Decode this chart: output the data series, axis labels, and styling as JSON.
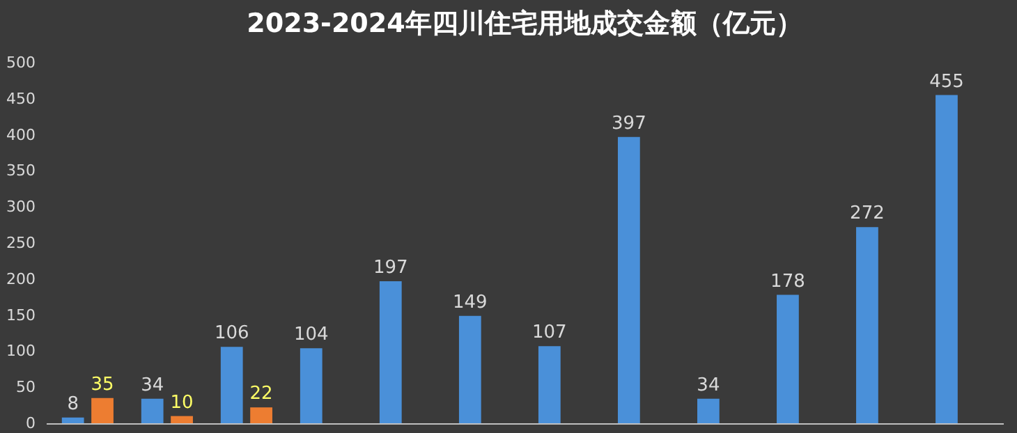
{
  "chart_data": {
    "type": "bar",
    "title": "2023-2024年四川住宅用地成交金额（亿元）",
    "categories": [
      null,
      null,
      null,
      null,
      null,
      null,
      null,
      null,
      null,
      null,
      null,
      null
    ],
    "series": [
      {
        "color": "#4a90d9",
        "values": [
          8,
          34,
          106,
          104,
          197,
          149,
          107,
          397,
          34,
          178,
          272,
          455
        ]
      },
      {
        "color": "#ed7d31",
        "values": [
          35,
          10,
          22,
          null,
          null,
          null,
          null,
          null,
          null,
          null,
          null,
          null
        ]
      }
    ],
    "ylim": [
      0,
      500
    ],
    "yticks": [
      0,
      50,
      100,
      150,
      200,
      250,
      300,
      350,
      400,
      450,
      500
    ],
    "data_labels": true,
    "grid": false,
    "legend": false,
    "tick_labels": "y"
  }
}
